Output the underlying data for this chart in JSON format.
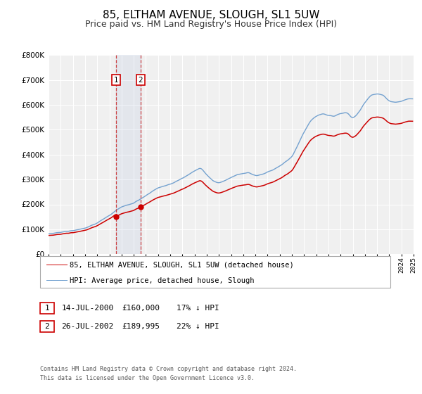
{
  "title": "85, ELTHAM AVENUE, SLOUGH, SL1 5UW",
  "subtitle": "Price paid vs. HM Land Registry's House Price Index (HPI)",
  "title_fontsize": 11,
  "subtitle_fontsize": 9,
  "background_color": "#ffffff",
  "plot_bg_color": "#f0f0f0",
  "grid_color": "#ffffff",
  "hpi_color": "#6699cc",
  "property_color": "#cc0000",
  "sale1_date_num": 2000.54,
  "sale2_date_num": 2002.57,
  "sale1_price": 160000,
  "sale2_price": 189995,
  "legend_property": "85, ELTHAM AVENUE, SLOUGH, SL1 5UW (detached house)",
  "legend_hpi": "HPI: Average price, detached house, Slough",
  "footer_line1": "Contains HM Land Registry data © Crown copyright and database right 2024.",
  "footer_line2": "This data is licensed under the Open Government Licence v3.0.",
  "ylim_min": 0,
  "ylim_max": 800000,
  "xmin": 1995,
  "xmax": 2025,
  "hpi_anchors_x": [
    1995,
    1996,
    1997,
    1998,
    1999,
    2000,
    2001,
    2002,
    2003,
    2004,
    2005,
    2006,
    2007,
    2007.5,
    2008,
    2008.5,
    2009,
    2009.5,
    2010,
    2010.5,
    2011,
    2011.5,
    2012,
    2012.5,
    2013,
    2013.5,
    2014,
    2015,
    2016,
    2016.5,
    2017,
    2017.5,
    2018,
    2018.5,
    2019,
    2019.5,
    2020,
    2020.5,
    2021,
    2021.5,
    2022,
    2022.5,
    2023,
    2023.5,
    2024,
    2024.5,
    2024.9
  ],
  "hpi_anchors_y": [
    80000,
    88000,
    95000,
    105000,
    125000,
    155000,
    190000,
    205000,
    235000,
    268000,
    280000,
    305000,
    335000,
    348000,
    320000,
    295000,
    285000,
    295000,
    308000,
    320000,
    325000,
    328000,
    315000,
    320000,
    330000,
    340000,
    355000,
    390000,
    490000,
    535000,
    555000,
    565000,
    558000,
    555000,
    565000,
    570000,
    545000,
    570000,
    610000,
    640000,
    645000,
    640000,
    615000,
    610000,
    615000,
    625000,
    625000
  ]
}
